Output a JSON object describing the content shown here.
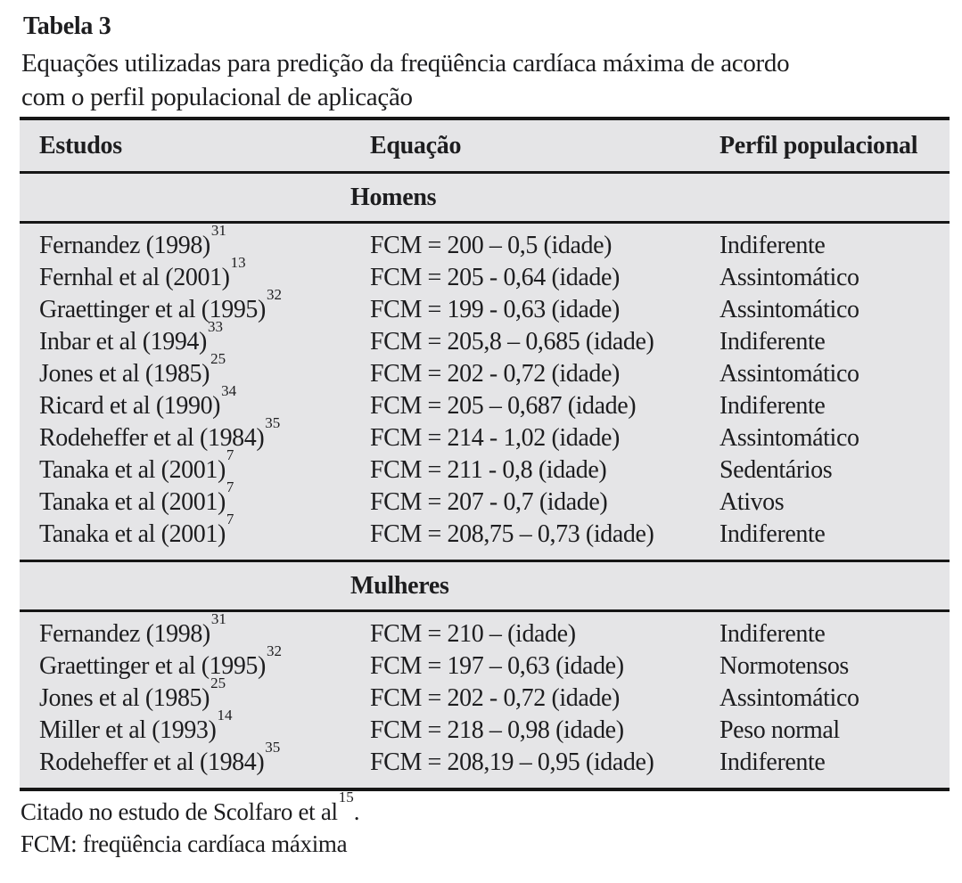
{
  "title": "Tabela 3",
  "subtitle_lines": [
    "Equações utilizadas para predição da freqüência cardíaca máxima de acordo",
    "com o perfil populacional de aplicação"
  ],
  "colors": {
    "table_background": "#e5e5e7",
    "rule": "#161616",
    "text": "#1d1d1f"
  },
  "table": {
    "columns": [
      "Estudos",
      "Equação",
      "Perfil populacional"
    ],
    "sections": [
      {
        "label": "Homens",
        "rows": [
          {
            "study": "Fernandez (1998)",
            "ref": "31",
            "equation": "FCM = 200 – 0,5 (idade)",
            "profile": "Indiferente"
          },
          {
            "study": "Fernhal et al (2001)",
            "ref": "13",
            "equation": "FCM = 205 - 0,64 (idade)",
            "profile": "Assintomático"
          },
          {
            "study": "Graettinger et al (1995)",
            "ref": "32",
            "equation": "FCM = 199 - 0,63 (idade)",
            "profile": "Assintomático"
          },
          {
            "study": "Inbar et al (1994)",
            "ref": "33",
            "equation": "FCM = 205,8 – 0,685 (idade)",
            "profile": "Indiferente"
          },
          {
            "study": "Jones et al (1985)",
            "ref": "25",
            "equation": "FCM = 202 - 0,72 (idade)",
            "profile": "Assintomático"
          },
          {
            "study": "Ricard et al (1990)",
            "ref": "34",
            "equation": "FCM = 205 – 0,687 (idade)",
            "profile": "Indiferente"
          },
          {
            "study": "Rodeheffer et al (1984)",
            "ref": "35",
            "equation": "FCM = 214 - 1,02 (idade)",
            "profile": "Assintomático"
          },
          {
            "study": "Tanaka et al (2001)",
            "ref": "7",
            "equation": "FCM = 211 - 0,8 (idade)",
            "profile": "Sedentários"
          },
          {
            "study": "Tanaka et al (2001)",
            "ref": "7",
            "equation": "FCM = 207 - 0,7 (idade)",
            "profile": "Ativos"
          },
          {
            "study": "Tanaka et al (2001)",
            "ref": "7",
            "equation": "FCM = 208,75 – 0,73 (idade)",
            "profile": "Indiferente"
          }
        ]
      },
      {
        "label": "Mulheres",
        "rows": [
          {
            "study": "Fernandez (1998)",
            "ref": "31",
            "equation": "FCM = 210 – (idade)",
            "profile": "Indiferente"
          },
          {
            "study": "Graettinger et al (1995)",
            "ref": "32",
            "equation": "FCM = 197 – 0,63 (idade)",
            "profile": "Normotensos"
          },
          {
            "study": "Jones et al (1985)",
            "ref": "25",
            "equation": "FCM = 202 - 0,72 (idade)",
            "profile": "Assintomático"
          },
          {
            "study": "Miller et al (1993)",
            "ref": "14",
            "equation": "FCM = 218 – 0,98 (idade)",
            "profile": "Peso normal"
          },
          {
            "study": "Rodeheffer et al (1984)",
            "ref": "35",
            "equation": "FCM = 208,19 – 0,95 (idade)",
            "profile": "Indiferente"
          }
        ]
      }
    ]
  },
  "footnotes": [
    {
      "text": "Citado no estudo de Scolfaro et al",
      "ref": "15",
      "suffix": "."
    },
    {
      "text": "FCM: freqüência cardíaca máxima",
      "ref": "",
      "suffix": ""
    }
  ]
}
